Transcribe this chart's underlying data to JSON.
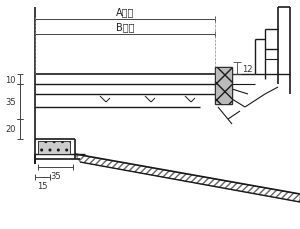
{
  "bg_color": "#ffffff",
  "line_color": "#1a1a1a",
  "annotations": {
    "A": "A寸法",
    "B": "B寸法",
    "dim_12": "12",
    "dim_10": "10",
    "dim_35a": "35",
    "dim_20": "20",
    "dim_35b": "35",
    "dim_15": "15"
  },
  "figsize": [
    3.0,
    2.3
  ],
  "dpi": 100
}
